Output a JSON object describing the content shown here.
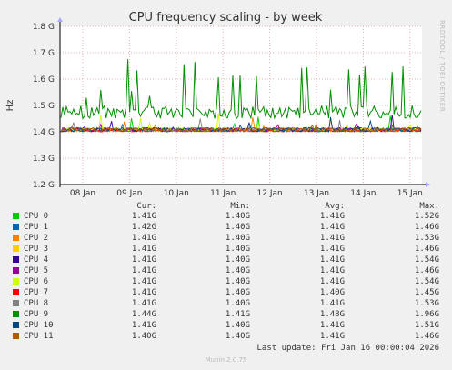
{
  "chart_data": {
    "type": "line",
    "title": "CPU frequency scaling - by week",
    "ylabel": "Hz",
    "side_label": "RRDTOOL / TOBI OETIKER",
    "ylim": [
      1.2,
      1.8
    ],
    "yticks": [
      {
        "value": 1.8,
        "label": "1.8 G"
      },
      {
        "value": 1.7,
        "label": "1.7 G"
      },
      {
        "value": 1.6,
        "label": "1.6 G"
      },
      {
        "value": 1.5,
        "label": "1.5 G"
      },
      {
        "value": 1.4,
        "label": "1.4 G"
      },
      {
        "value": 1.3,
        "label": "1.3 G"
      },
      {
        "value": 1.2,
        "label": "1.2 G"
      }
    ],
    "xlim": [
      0,
      8
    ],
    "xticks": [
      {
        "value": 1,
        "label": "08 Jan"
      },
      {
        "value": 2,
        "label": "09 Jan"
      },
      {
        "value": 3,
        "label": "10 Jan"
      },
      {
        "value": 4,
        "label": "11 Jan"
      },
      {
        "value": 5,
        "label": "12 Jan"
      },
      {
        "value": 6,
        "label": "13 Jan"
      },
      {
        "value": 7,
        "label": "14 Jan"
      },
      {
        "value": 8,
        "label": "15 Jan"
      }
    ],
    "grid": true,
    "columns": [
      "Cur:",
      "Min:",
      "Avg:",
      "Max:"
    ],
    "series": [
      {
        "name": "CPU 0",
        "color": "#00cc00",
        "cur": "1.41G",
        "min": "1.40G",
        "avg": "1.41G",
        "max": "1.52G"
      },
      {
        "name": "CPU 1",
        "color": "#0066b3",
        "cur": "1.42G",
        "min": "1.40G",
        "avg": "1.41G",
        "max": "1.46G"
      },
      {
        "name": "CPU 2",
        "color": "#ff8000",
        "cur": "1.41G",
        "min": "1.40G",
        "avg": "1.41G",
        "max": "1.53G"
      },
      {
        "name": "CPU 3",
        "color": "#ffcc00",
        "cur": "1.41G",
        "min": "1.40G",
        "avg": "1.41G",
        "max": "1.46G"
      },
      {
        "name": "CPU 4",
        "color": "#330099",
        "cur": "1.41G",
        "min": "1.40G",
        "avg": "1.41G",
        "max": "1.54G"
      },
      {
        "name": "CPU 5",
        "color": "#990099",
        "cur": "1.41G",
        "min": "1.40G",
        "avg": "1.41G",
        "max": "1.46G"
      },
      {
        "name": "CPU 6",
        "color": "#ccff00",
        "cur": "1.41G",
        "min": "1.40G",
        "avg": "1.41G",
        "max": "1.54G"
      },
      {
        "name": "CPU 7",
        "color": "#ff0000",
        "cur": "1.41G",
        "min": "1.40G",
        "avg": "1.40G",
        "max": "1.45G"
      },
      {
        "name": "CPU 8",
        "color": "#808080",
        "cur": "1.41G",
        "min": "1.40G",
        "avg": "1.41G",
        "max": "1.53G"
      },
      {
        "name": "CPU 9",
        "color": "#008f00",
        "cur": "1.44G",
        "min": "1.41G",
        "avg": "1.48G",
        "max": "1.96G"
      },
      {
        "name": "CPU 10",
        "color": "#00487d",
        "cur": "1.41G",
        "min": "1.40G",
        "avg": "1.41G",
        "max": "1.51G"
      },
      {
        "name": "CPU 11",
        "color": "#b35a00",
        "cur": "1.40G",
        "min": "1.40G",
        "avg": "1.41G",
        "max": "1.46G"
      }
    ]
  },
  "footer": {
    "last_update": "Last update: Fri Jan 16 00:00:04 2026",
    "version": "Munin 2.0.75"
  }
}
